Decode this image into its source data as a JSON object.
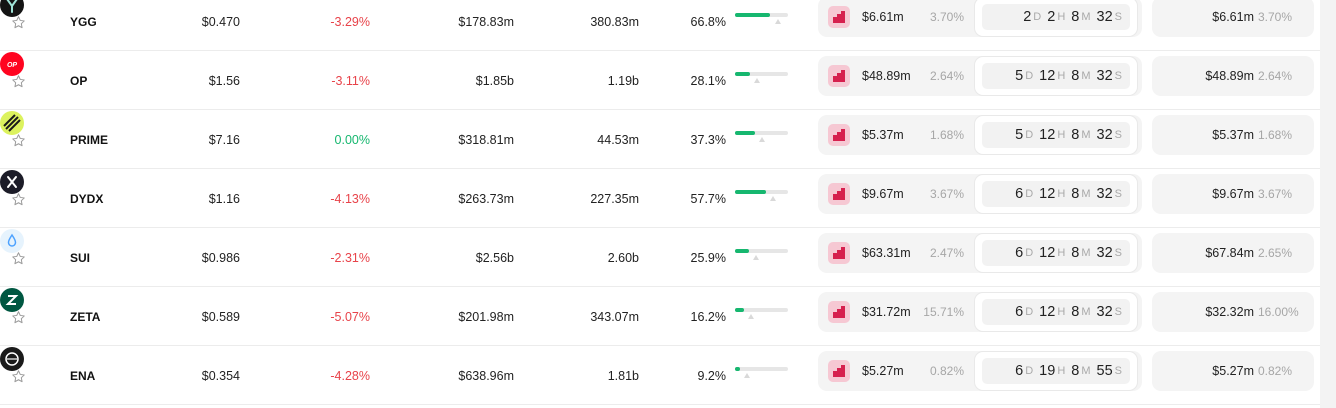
{
  "colors": {
    "negative": "#e8434a",
    "positive": "#16b76f",
    "bar_fill": "#16b76f",
    "exchange_icon_bg": "#f6c8d3",
    "exchange_icon_fg": "#d6204e"
  },
  "rows": [
    {
      "symbol": "YGG",
      "icon": "ygg-logo-icon",
      "price": "$0.470",
      "change": "-3.29%",
      "change_sign": "negative",
      "market_cap": "$178.83m",
      "volume": "380.83m",
      "percent": "66.8%",
      "progress": 0.668,
      "indicator": 0.66,
      "card": {
        "amount": "$6.61m",
        "pct": "3.70%",
        "d": "2",
        "h": "2",
        "m": "8",
        "s": "32",
        "du": "D",
        "hu": "H",
        "mu": "M",
        "su": "S"
      },
      "card2": {
        "amount": "$6.61m",
        "pct": "3.70%"
      }
    },
    {
      "symbol": "OP",
      "icon": "op-logo-icon",
      "price": "$1.56",
      "change": "-3.11%",
      "change_sign": "negative",
      "market_cap": "$1.85b",
      "volume": "1.19b",
      "percent": "28.1%",
      "progress": 0.281,
      "indicator": 0.27,
      "card": {
        "amount": "$48.89m",
        "pct": "2.64%",
        "d": "5",
        "h": "12",
        "m": "8",
        "s": "32",
        "du": "D",
        "hu": "H",
        "mu": "M",
        "su": "S"
      },
      "card2": {
        "amount": "$48.89m",
        "pct": "2.64%"
      }
    },
    {
      "symbol": "PRIME",
      "icon": "prime-logo-icon",
      "price": "$7.16",
      "change": "0.00%",
      "change_sign": "zero",
      "market_cap": "$318.81m",
      "volume": "44.53m",
      "percent": "37.3%",
      "progress": 0.373,
      "indicator": 0.36,
      "card": {
        "amount": "$5.37m",
        "pct": "1.68%",
        "d": "5",
        "h": "12",
        "m": "8",
        "s": "32",
        "du": "D",
        "hu": "H",
        "mu": "M",
        "su": "S"
      },
      "card2": {
        "amount": "$5.37m",
        "pct": "1.68%"
      }
    },
    {
      "symbol": "DYDX",
      "icon": "dydx-logo-icon",
      "price": "$1.16",
      "change": "-4.13%",
      "change_sign": "negative",
      "market_cap": "$263.73m",
      "volume": "227.35m",
      "percent": "57.7%",
      "progress": 0.577,
      "indicator": 0.56,
      "card": {
        "amount": "$9.67m",
        "pct": "3.67%",
        "d": "6",
        "h": "12",
        "m": "8",
        "s": "32",
        "du": "D",
        "hu": "H",
        "mu": "M",
        "su": "S"
      },
      "card2": {
        "amount": "$9.67m",
        "pct": "3.67%"
      }
    },
    {
      "symbol": "SUI",
      "icon": "sui-logo-icon",
      "price": "$0.986",
      "change": "-2.31%",
      "change_sign": "negative",
      "market_cap": "$2.56b",
      "volume": "2.60b",
      "percent": "25.9%",
      "progress": 0.259,
      "indicator": 0.25,
      "card": {
        "amount": "$63.31m",
        "pct": "2.47%",
        "d": "6",
        "h": "12",
        "m": "8",
        "s": "32",
        "du": "D",
        "hu": "H",
        "mu": "M",
        "su": "S"
      },
      "card2": {
        "amount": "$67.84m",
        "pct": "2.65%"
      }
    },
    {
      "symbol": "ZETA",
      "icon": "zeta-logo-icon",
      "price": "$0.589",
      "change": "-5.07%",
      "change_sign": "negative",
      "market_cap": "$201.98m",
      "volume": "343.07m",
      "percent": "16.2%",
      "progress": 0.162,
      "indicator": 0.15,
      "card": {
        "amount": "$31.72m",
        "pct": "15.71%",
        "d": "6",
        "h": "12",
        "m": "8",
        "s": "32",
        "du": "D",
        "hu": "H",
        "mu": "M",
        "su": "S"
      },
      "card2": {
        "amount": "$32.32m",
        "pct": "16.00%"
      }
    },
    {
      "symbol": "ENA",
      "icon": "ena-logo-icon",
      "price": "$0.354",
      "change": "-4.28%",
      "change_sign": "negative",
      "market_cap": "$638.96m",
      "volume": "1.81b",
      "percent": "9.2%",
      "progress": 0.092,
      "indicator": 0.08,
      "card": {
        "amount": "$5.27m",
        "pct": "0.82%",
        "d": "6",
        "h": "19",
        "m": "8",
        "s": "55",
        "du": "D",
        "hu": "H",
        "mu": "M",
        "su": "S"
      },
      "card2": {
        "amount": "$5.27m",
        "pct": "0.82%"
      }
    }
  ]
}
